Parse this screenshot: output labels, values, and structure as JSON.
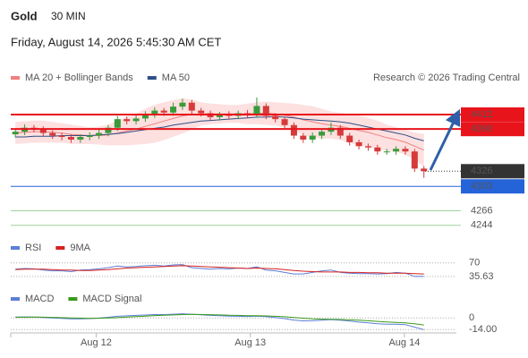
{
  "header": {
    "title": "Gold",
    "interval": "30 MIN",
    "datetime": "Friday, August 14, 2026 5:45:30 AM CET"
  },
  "chart_data": [
    {
      "type": "candlestick",
      "credit": "Research © 2026 Trading Central",
      "xlim": [
        0,
        48
      ],
      "ylim": [
        4230,
        4450
      ],
      "xticks": [
        {
          "value": 9.2,
          "label": "Aug 12"
        },
        {
          "value": 25.8,
          "label": "Aug 13"
        },
        {
          "value": 42.4,
          "label": "Aug 14"
        }
      ],
      "up_color": "#3a9a3a",
      "down_color": "#d63a3a",
      "open": [
        4382,
        4386,
        4392,
        4390,
        4384,
        4380,
        4378,
        4374,
        4378,
        4380,
        4384,
        4392,
        4405,
        4402,
        4406,
        4412,
        4418,
        4415,
        4424,
        4430,
        4418,
        4414,
        4408,
        4412,
        4410,
        4414,
        4412,
        4425,
        4410,
        4405,
        4396,
        4380,
        4374,
        4380,
        4386,
        4392,
        4380,
        4370,
        4364,
        4362,
        4356,
        4356,
        4360,
        4356,
        4330
      ],
      "high": [
        4391,
        4397,
        4396,
        4394,
        4388,
        4384,
        4382,
        4382,
        4385,
        4389,
        4396,
        4410,
        4409,
        4411,
        4417,
        4423,
        4422,
        4430,
        4436,
        4434,
        4422,
        4418,
        4416,
        4417,
        4418,
        4419,
        4438,
        4429,
        4414,
        4409,
        4400,
        4384,
        4385,
        4390,
        4400,
        4396,
        4384,
        4374,
        4368,
        4366,
        4360,
        4364,
        4364,
        4360,
        4334
      ],
      "low": [
        4377,
        4381,
        4385,
        4379,
        4375,
        4373,
        4369,
        4369,
        4373,
        4375,
        4379,
        4387,
        4397,
        4397,
        4401,
        4407,
        4410,
        4410,
        4419,
        4413,
        4409,
        4403,
        4403,
        4405,
        4405,
        4407,
        4407,
        4405,
        4400,
        4391,
        4375,
        4369,
        4369,
        4375,
        4381,
        4375,
        4365,
        4359,
        4357,
        4351,
        4351,
        4351,
        4351,
        4325,
        4316
      ],
      "close": [
        4386,
        4392,
        4390,
        4384,
        4380,
        4378,
        4374,
        4378,
        4380,
        4384,
        4392,
        4405,
        4402,
        4406,
        4412,
        4418,
        4415,
        4424,
        4430,
        4418,
        4414,
        4408,
        4412,
        4410,
        4414,
        4412,
        4425,
        4410,
        4405,
        4396,
        4380,
        4374,
        4380,
        4386,
        4392,
        4380,
        4370,
        4364,
        4362,
        4356,
        4356,
        4360,
        4356,
        4330,
        4326
      ],
      "series": [
        {
          "name": "MA 20 + Bollinger Bands",
          "color": "#f08080",
          "band_color": "#fde0e0",
          "values": [
            4384,
            4385,
            4386,
            4386,
            4385,
            4384,
            4382,
            4381,
            4380,
            4380,
            4381,
            4384,
            4387,
            4390,
            4394,
            4398,
            4402,
            4406,
            4410,
            4412,
            4413,
            4413,
            4413,
            4413,
            4413,
            4413,
            4414,
            4414,
            4413,
            4411,
            4408,
            4404,
            4401,
            4398,
            4396,
            4394,
            4391,
            4388,
            4385,
            4381,
            4377,
            4374,
            4370,
            4364,
            4358
          ],
          "upper": [
            4400,
            4401,
            4402,
            4402,
            4400,
            4398,
            4396,
            4394,
            4392,
            4393,
            4396,
            4402,
            4408,
            4413,
            4420,
            4426,
            4430,
            4433,
            4436,
            4434,
            4430,
            4428,
            4427,
            4426,
            4426,
            4428,
            4430,
            4431,
            4430,
            4429,
            4428,
            4426,
            4424,
            4420,
            4416,
            4414,
            4412,
            4410,
            4406,
            4402,
            4396,
            4392,
            4388,
            4384,
            4382
          ],
          "lower": [
            4368,
            4369,
            4370,
            4370,
            4370,
            4370,
            4368,
            4368,
            4368,
            4367,
            4366,
            4366,
            4366,
            4367,
            4368,
            4370,
            4374,
            4379,
            4384,
            4390,
            4396,
            4398,
            4399,
            4400,
            4400,
            4398,
            4398,
            4397,
            4396,
            4393,
            4388,
            4382,
            4378,
            4376,
            4376,
            4374,
            4370,
            4366,
            4364,
            4360,
            4358,
            4356,
            4352,
            4344,
            4334
          ]
        },
        {
          "name": "MA 50",
          "color": "#2e4f86",
          "values": [
            4378,
            4378,
            4379,
            4379,
            4379,
            4380,
            4380,
            4380,
            4380,
            4381,
            4382,
            4383,
            4385,
            4387,
            4389,
            4391,
            4393,
            4396,
            4398,
            4400,
            4402,
            4403,
            4404,
            4405,
            4406,
            4407,
            4408,
            4408,
            4409,
            4408,
            4407,
            4405,
            4404,
            4403,
            4402,
            4401,
            4399,
            4396,
            4393,
            4390,
            4387,
            4384,
            4381,
            4376,
            4372
          ]
        }
      ],
      "levels": [
        {
          "value": 4412,
          "color": "#e8141c",
          "style": "box"
        },
        {
          "value": 4390,
          "color": "#e8141c",
          "style": "box"
        },
        {
          "value": 4326,
          "color": "#333333",
          "style": "dotted"
        },
        {
          "value": 4303,
          "color": "#2563d8",
          "style": "box"
        },
        {
          "value": 4266,
          "color": "#2e8b2e",
          "style": "text"
        },
        {
          "value": 4244,
          "color": "#2e8b2e",
          "style": "text"
        }
      ]
    },
    {
      "type": "line",
      "xlim": [
        0,
        48
      ],
      "ylim": [
        15,
        90
      ],
      "yticks": [
        70,
        {
          "value": 35.63,
          "label": "35.63"
        }
      ],
      "series": [
        {
          "name": "RSI",
          "color": "#5b7fd6",
          "values": [
            54,
            56,
            55,
            52,
            50,
            50,
            48,
            52,
            53,
            55,
            58,
            62,
            60,
            61,
            63,
            64,
            62,
            65,
            66,
            58,
            56,
            54,
            56,
            55,
            57,
            56,
            60,
            52,
            50,
            46,
            42,
            42,
            46,
            50,
            52,
            46,
            44,
            43,
            43,
            42,
            43,
            46,
            44,
            36,
            35.63
          ]
        },
        {
          "name": "9MA",
          "color": "#d62020",
          "values": [
            53,
            54,
            54,
            54,
            53,
            52,
            52,
            51,
            51,
            52,
            53,
            55,
            57,
            58,
            59,
            60,
            61,
            62,
            63,
            62,
            61,
            60,
            59,
            58,
            57,
            56,
            57,
            56,
            55,
            53,
            51,
            49,
            48,
            47,
            47,
            47,
            46,
            46,
            45,
            45,
            44,
            44,
            44,
            43,
            42
          ]
        }
      ]
    },
    {
      "type": "line",
      "xlim": [
        0,
        48
      ],
      "ylim": [
        -18,
        11
      ],
      "yticks": [
        0,
        {
          "value": -14,
          "label": "-14.00"
        }
      ],
      "series": [
        {
          "name": "MACD",
          "color": "#5b7fd6",
          "values": [
            1,
            1.2,
            1,
            0.5,
            0,
            -0.5,
            -1,
            -1,
            -0.8,
            -0.2,
            0.8,
            2,
            2.5,
            3,
            3.5,
            4,
            4,
            4.5,
            5,
            4.5,
            3.8,
            3,
            2.6,
            2.2,
            2,
            1.8,
            2.2,
            1.5,
            0.6,
            -0.8,
            -2.5,
            -3.5,
            -3.4,
            -2.8,
            -2,
            -2.6,
            -3.8,
            -5,
            -6,
            -7,
            -7.6,
            -7.6,
            -8,
            -11,
            -14
          ]
        },
        {
          "name": "MACD Signal",
          "color": "#3a9a1a",
          "values": [
            0.8,
            0.9,
            1,
            0.9,
            0.7,
            0.4,
            0,
            -0.3,
            -0.5,
            -0.4,
            -0.1,
            0.4,
            1,
            1.6,
            2.2,
            2.8,
            3.2,
            3.6,
            4,
            4.2,
            4.1,
            3.9,
            3.6,
            3.3,
            3,
            2.7,
            2.6,
            2.4,
            2,
            1.4,
            0.6,
            -0.3,
            -1,
            -1.5,
            -1.7,
            -1.9,
            -2.3,
            -2.8,
            -3.4,
            -4.1,
            -4.8,
            -5.4,
            -6,
            -7,
            -8.4
          ]
        }
      ]
    }
  ]
}
